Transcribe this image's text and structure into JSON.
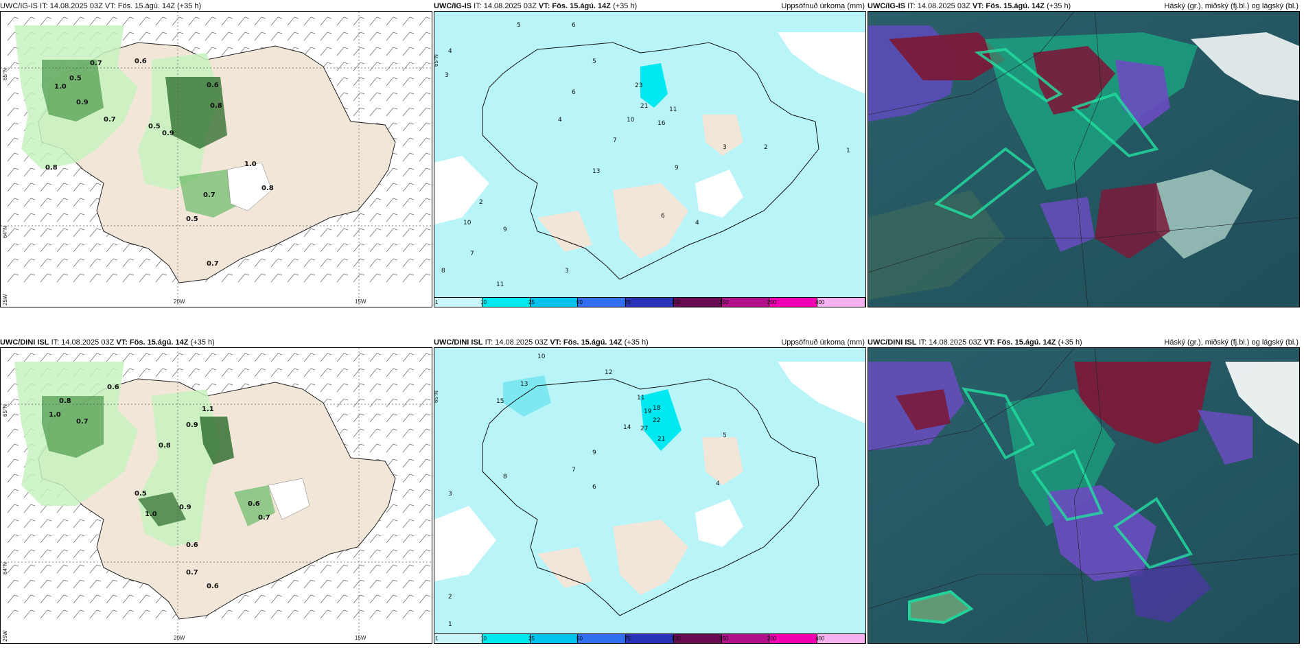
{
  "panels": {
    "wind_ig": {
      "header": "UWC/IG-IS IT: 14.08.2025 03Z VT: Fös. 15.ágú. 14Z (+35 h)",
      "lat_labels": [
        "65°N",
        "64°N"
      ],
      "lon_labels": [
        "25W",
        "20W",
        "15W"
      ],
      "values": [
        "0.7",
        "0.6",
        "0.8",
        "0.5",
        "1.0",
        "0.9",
        "0.7",
        "0.5",
        "0.6",
        "0.8",
        "0.9",
        "0.7",
        "1.0",
        "0.5",
        "0.8",
        "0.7"
      ]
    },
    "precip_ig": {
      "header_model": "UWC/IG-IS",
      "header_it": "IT: 14.08.2025 03Z",
      "header_vt": "VT: Fös. 15.ágú. 14Z",
      "header_lead": "(+35 h)",
      "header_right": "Uppsöfnuð úrkoma (mm)",
      "lat_label": "65°N",
      "values": [
        "5",
        "6",
        "4",
        "3",
        "23",
        "21",
        "16",
        "11",
        "10",
        "7",
        "6",
        "5",
        "4",
        "3",
        "2",
        "9",
        "8",
        "2",
        "10",
        "11",
        "13",
        "7",
        "9",
        "3",
        "4",
        "6",
        "1"
      ]
    },
    "cloud_ig": {
      "header_model": "UWC/IG-IS",
      "header_it": "IT: 14.08.2025 03Z",
      "header_vt": "VT: Fös. 15.ágú. 14Z",
      "header_lead": "(+35 h)",
      "header_right": "Háský (gr.), miðský (fj.bl.) og lágský (bl.)"
    },
    "wind_dini": {
      "header_model": "UWC/DINI ISL",
      "header_it": "IT: 14.08.2025 03Z",
      "header_vt": "VT: Fös. 15.ágú. 14Z",
      "header_lead": "(+35 h)",
      "lat_labels": [
        "65°N",
        "64°N"
      ],
      "lon_labels": [
        "25W",
        "20W",
        "15W"
      ],
      "values": [
        "0.8",
        "0.6",
        "0.7",
        "1.0",
        "0.9",
        "1.1",
        "0.5",
        "0.8",
        "0.9",
        "0.6",
        "0.7",
        "0.6",
        "0.7",
        "1.0",
        "0.6"
      ]
    },
    "precip_dini": {
      "header_model": "UWC/DINI ISL",
      "header_it": "IT: 14.08.2025 03Z",
      "header_vt": "VT: Fös. 15.ágú. 14Z",
      "header_lead": "(+35 h)",
      "header_right": "Uppsöfnuð úrkoma (mm)",
      "lat_label": "65°N",
      "values": [
        "10",
        "12",
        "13",
        "15",
        "18",
        "11",
        "27",
        "22",
        "14",
        "21",
        "19",
        "9",
        "7",
        "5",
        "4",
        "3",
        "2",
        "8",
        "6",
        "1"
      ]
    },
    "cloud_dini": {
      "header_model": "UWC/DINI ISL",
      "header_it": "IT: 14.08.2025 03Z",
      "header_vt": "VT: Fös. 15.ágú. 14Z",
      "header_lead": "(+35 h)",
      "header_right": "Háský (gr.), miðský (fj.bl.) og lágský (bl.)"
    }
  },
  "colorbar": {
    "labels": [
      "1",
      "10",
      "25",
      "50",
      "75",
      "100",
      "150",
      "200",
      "400"
    ],
    "colors": [
      "#c8f6fa",
      "#00e8f0",
      "#00c4ee",
      "#2f6ff0",
      "#2a33b8",
      "#6a0a52",
      "#b0108a",
      "#f000b0",
      "#f6b0f0"
    ]
  },
  "colors": {
    "land": "#f2e6d8",
    "sea_precip": "#b8f4f8",
    "green_light": "#c8f2c0",
    "green_mid": "#7cc87a",
    "green_dark": "#2a6a2a",
    "cloud_teal": "#2a5f6a",
    "cloud_green": "#18c08a",
    "cloud_purple": "#6a4cc0",
    "cloud_maroon": "#7a1a3a"
  }
}
